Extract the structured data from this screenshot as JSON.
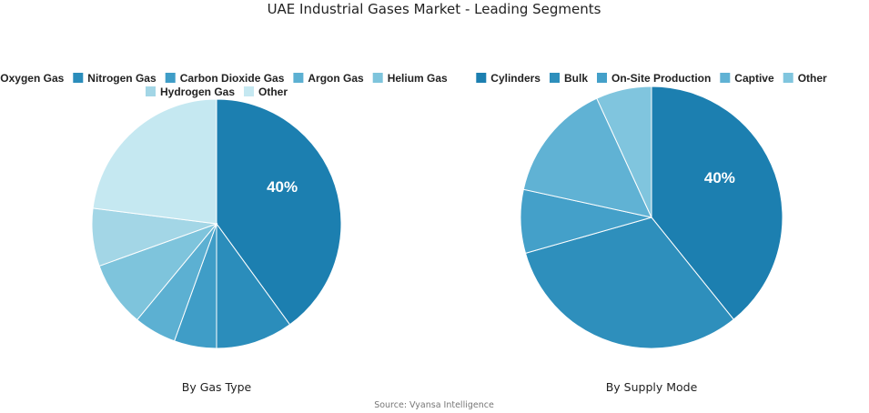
{
  "title": "UAE Industrial Gases Market - Leading Segments",
  "source": "Source: Vyansa Intelligence",
  "chart_data": [
    {
      "type": "pie",
      "subtitle": "By Gas Type",
      "legend_position": "top",
      "categories": [
        "Oxygen Gas",
        "Nitrogen Gas",
        "Carbon Dioxide Gas",
        "Argon Gas",
        "Helium Gas",
        "Hydrogen Gas",
        "Other"
      ],
      "values": [
        40,
        10,
        5.5,
        5.5,
        8.5,
        7.5,
        23
      ],
      "colors": [
        "#1c7fb0",
        "#2b8dbb",
        "#3f9dc7",
        "#5cb0d2",
        "#7ec4dc",
        "#a3d6e6",
        "#c5e8f1"
      ],
      "data_labels": [
        "40%",
        "",
        "",
        "",
        "",
        "",
        ""
      ]
    },
    {
      "type": "pie",
      "subtitle": "By Supply Mode",
      "legend_position": "top",
      "categories": [
        "Cylinders",
        "Bulk",
        "On-Site Production",
        "Captive",
        "Other"
      ],
      "values": [
        40,
        32,
        8,
        15,
        7
      ],
      "colors": [
        "#1c7fb0",
        "#2e8fbc",
        "#44a0c9",
        "#60b2d4",
        "#80c5de"
      ],
      "data_labels": [
        "40%",
        "",
        "",
        "",
        ""
      ]
    }
  ]
}
